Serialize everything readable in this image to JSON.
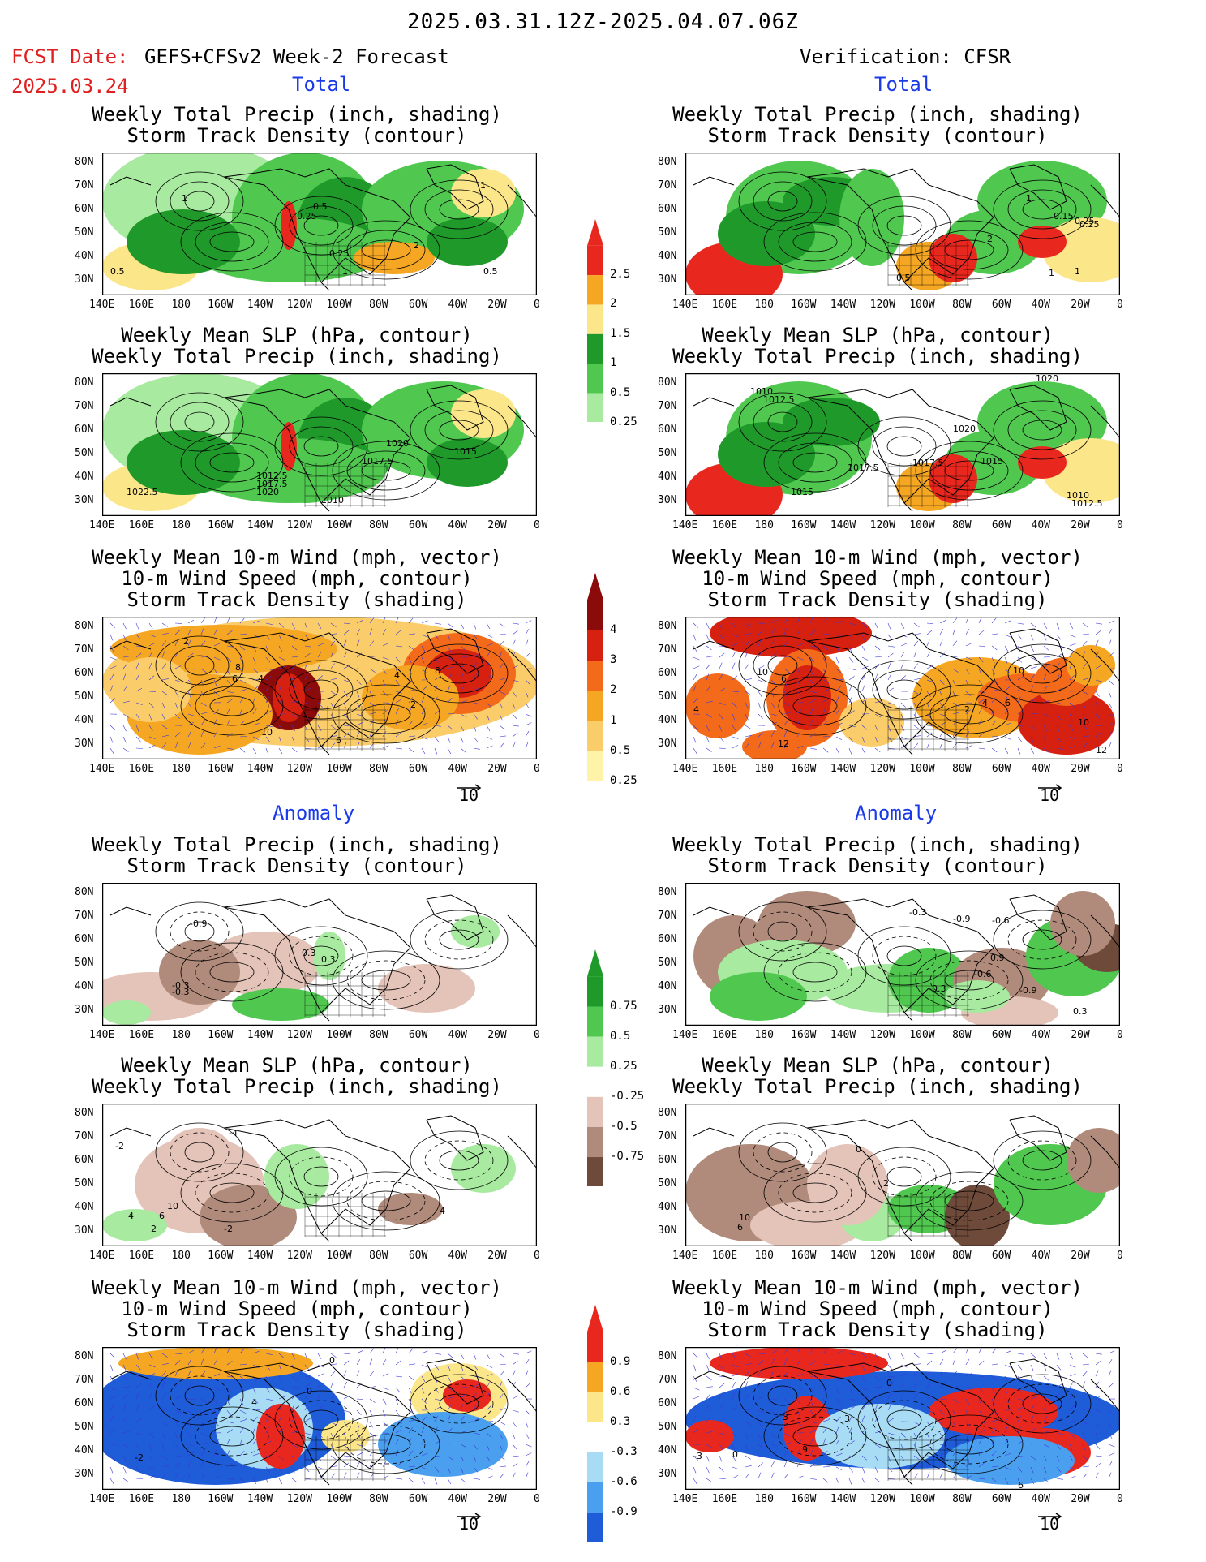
{
  "header": {
    "title": "2025.03.31.12Z-2025.04.07.06Z",
    "fcst_label": "FCST Date:",
    "fcst_model": "GEFS+CFSv2 Week-2 Forecast",
    "fcst_date": "2025.03.24",
    "verification": "Verification: CFSR"
  },
  "sections": {
    "total": "Total",
    "anomaly": "Anomaly"
  },
  "panel_titles": {
    "precip_track": [
      "Weekly Total Precip (inch, shading)",
      "Storm Track Density (contour)"
    ],
    "slp_precip": [
      "Weekly Mean SLP (hPa, contour)",
      "Weekly Total Precip (inch, shading)"
    ],
    "wind_track": [
      "Weekly Mean 10-m Wind (mph, vector)",
      "10-m Wind Speed (mph, contour)",
      "Storm Track Density (shading)"
    ]
  },
  "axes": {
    "lat_ticks": [
      "80N",
      "70N",
      "60N",
      "50N",
      "40N",
      "30N"
    ],
    "lon_ticks": [
      "140E",
      "160E",
      "180",
      "160W",
      "140W",
      "120W",
      "100W",
      "80W",
      "60W",
      "40W",
      "20W",
      "0"
    ]
  },
  "vector_ref": "10",
  "colorbars": {
    "precip_total": {
      "labels": [
        "2.5",
        "2",
        "1.5",
        "1",
        "0.5",
        "0.25"
      ],
      "colors": [
        "#e8281e",
        "#f5a623",
        "#fce68a",
        "#1f9a2a",
        "#50c850",
        "#a8eaa0"
      ]
    },
    "track_total": {
      "labels": [
        "4",
        "3",
        "2",
        "1",
        "0.5",
        "0.25"
      ],
      "colors": [
        "#8b0b0b",
        "#d62010",
        "#f26a1a",
        "#f5a623",
        "#fbcc6a",
        "#fff3a8"
      ]
    },
    "precip_anom": {
      "labels": [
        "0.75",
        "0.5",
        "0.25",
        "-0.25",
        "-0.5",
        "-0.75"
      ],
      "colors": [
        "#1f9a2a",
        "#50c850",
        "#a8eaa0",
        "#ffffff",
        "#e4c3b8",
        "#b08a7a",
        "#6e4a3a"
      ]
    },
    "track_anom": {
      "labels": [
        "0.9",
        "0.6",
        "0.3",
        "-0.3",
        "-0.6",
        "-0.9"
      ],
      "colors": [
        "#e8281e",
        "#f5a623",
        "#fce68a",
        "#ffffff",
        "#a8dcf5",
        "#4aa0ee",
        "#1e5cd8"
      ]
    }
  },
  "map_labels": {
    "p1": [
      "0.5",
      "1",
      "0.5",
      "0.25",
      "1",
      "0.25",
      "2",
      "1",
      "0.5"
    ],
    "p2": [
      "1",
      "2",
      "0.25",
      "1",
      "0.5",
      "0.15",
      "0.25",
      "1"
    ],
    "p3": [
      "1012.5",
      "1017.5",
      "1020",
      "1022.5",
      "1010",
      "1017.5",
      "1020",
      "1015"
    ],
    "p4": [
      "1010",
      "1012.5",
      "1020",
      "1017.5",
      "1017.5",
      "1015",
      "1015",
      "1020",
      "1010",
      "1012.5"
    ],
    "p5": [
      "2",
      "6",
      "8",
      "4",
      "4",
      "2",
      "10",
      "6",
      "8"
    ],
    "p6": [
      "4",
      "10",
      "6",
      "2",
      "4",
      "10",
      "6",
      "12",
      "10",
      "12"
    ],
    "p7": [
      "-0.9",
      "0.3",
      "-0.3",
      "-0.3",
      "0.3"
    ],
    "p8": [
      "-0.3",
      "-0.9",
      "-0.6",
      "0.9",
      "-0.6",
      "0.3",
      "-0.9",
      "-0.3"
    ],
    "p9": [
      "-2",
      "-4",
      "10",
      "6",
      "4",
      "2",
      "-2",
      "4"
    ],
    "p10": [
      "10",
      "6",
      "0",
      "2"
    ],
    "p11": [
      "0",
      "4",
      "0",
      "-2"
    ],
    "p12": [
      "0",
      "3",
      "3",
      "-3",
      "0",
      "9",
      "6"
    ]
  }
}
